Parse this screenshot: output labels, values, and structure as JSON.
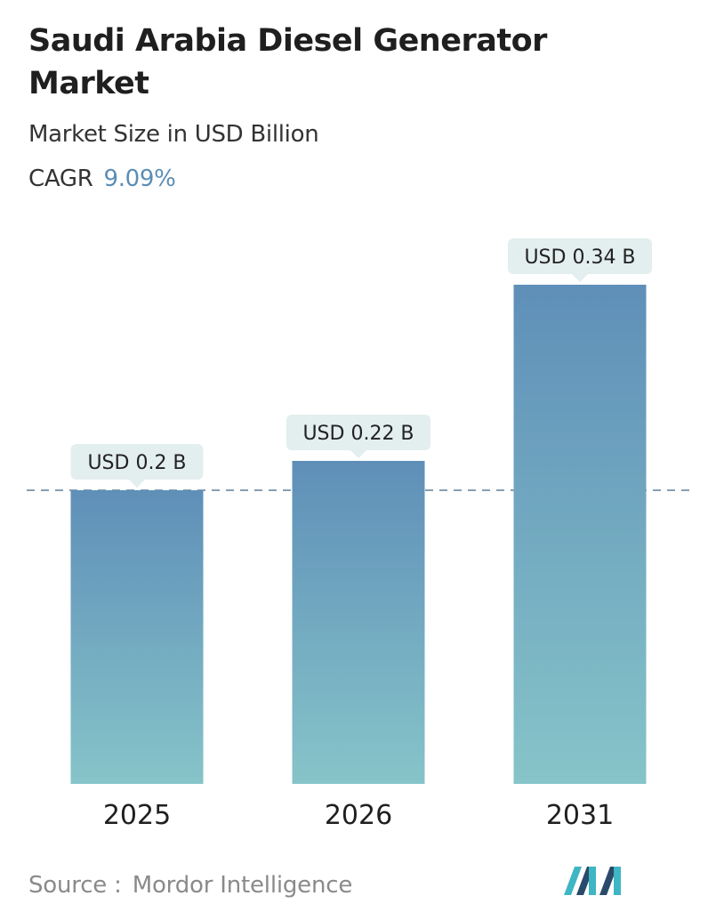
{
  "header": {
    "title": "Saudi Arabia Diesel Generator Market",
    "subtitle": "Market Size in USD Billion",
    "cagr_label": "CAGR",
    "cagr_value": "9.09%"
  },
  "chart_data": {
    "type": "bar",
    "categories": [
      "2025",
      "2026",
      "2031"
    ],
    "values": [
      0.2,
      0.22,
      0.34
    ],
    "data_labels": [
      "USD 0.2 B",
      "USD 0.22 B",
      "USD 0.34 B"
    ],
    "title": "Saudi Arabia Diesel Generator Market",
    "subtitle": "Market Size in USD Billion",
    "reference_line": 0.2,
    "grid": false,
    "legend": "none",
    "colors": {
      "bar_top": "#5f8fb8",
      "bar_bottom": "#86c4c9",
      "label_bg": "#e3eeee",
      "reference_line": "#5e7f98"
    }
  },
  "footer": {
    "source_label": "Source :",
    "source_value": "Mordor Intelligence"
  },
  "logo": {
    "icon": "mordor-intelligence-logo-icon",
    "colors": [
      "#2a4a6b",
      "#3eb6c4"
    ]
  }
}
